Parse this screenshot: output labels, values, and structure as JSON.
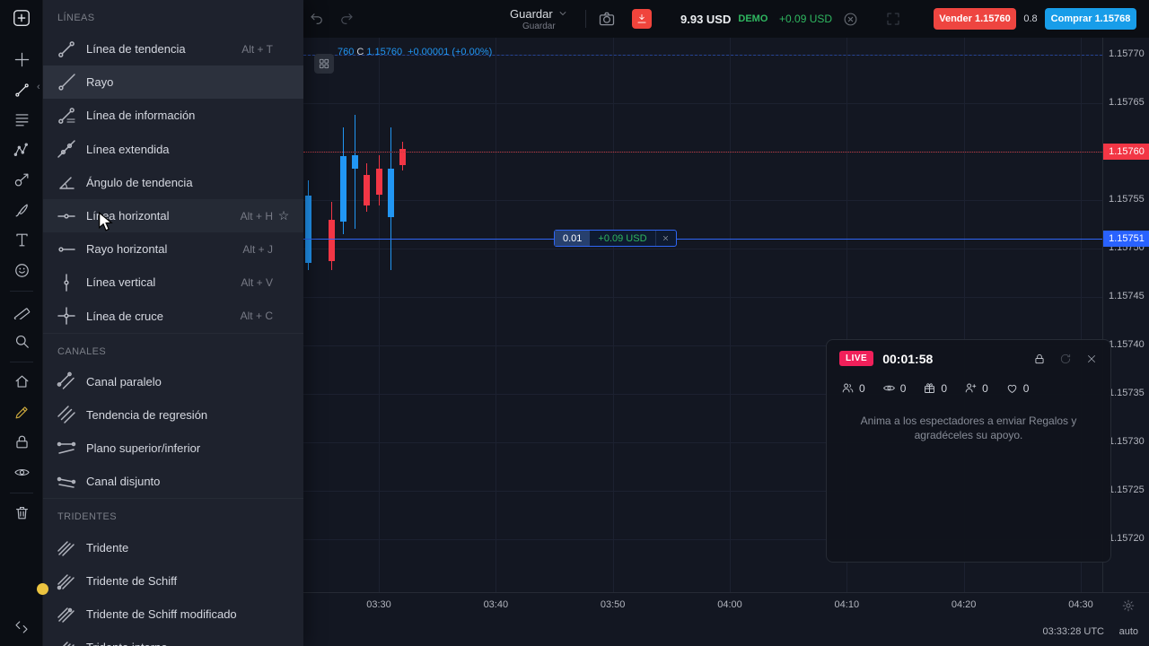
{
  "colors": {
    "background": "#131722",
    "panel": "#1e222d",
    "topbar": "#0b0e14",
    "up_candle": "#2196f3",
    "down_candle": "#f23645",
    "sell_button": "#ee4540",
    "buy_button": "#189de9",
    "green": "#2fb760",
    "live_badge": "#f0205a",
    "position_line": "#2962ff",
    "grid": "#1c2130",
    "axis_text": "#b2b5be",
    "muted_text": "#787b86"
  },
  "topbar": {
    "save_label": "Guardar",
    "save_sublabel": "Guardar",
    "balance": "9.93 USD",
    "account_type": "DEMO",
    "profit": "+0.09 USD",
    "sell_label": "Vender",
    "sell_price": "1.15760",
    "payout": "0.8",
    "buy_label": "Comprar",
    "buy_price": "1.15768"
  },
  "sidebar": {
    "tools": [
      {
        "name": "crosshair",
        "icon": "crosshair"
      },
      {
        "name": "trend-line",
        "icon": "trend",
        "active": true
      },
      {
        "name": "fib-retracement",
        "icon": "fib"
      },
      {
        "name": "xabcd-pattern",
        "icon": "pattern"
      },
      {
        "name": "forecast",
        "icon": "forecast"
      },
      {
        "name": "brush",
        "icon": "brush"
      },
      {
        "name": "text",
        "icon": "text"
      },
      {
        "name": "emoji",
        "icon": "emoji"
      },
      {
        "divider": true
      },
      {
        "name": "measure",
        "icon": "ruler"
      },
      {
        "name": "zoom",
        "icon": "zoom"
      },
      {
        "divider": true
      },
      {
        "name": "home",
        "icon": "home"
      },
      {
        "name": "drawing-lock",
        "icon": "pencil-lock",
        "accent": "#c9a63d"
      },
      {
        "name": "lock-all",
        "icon": "lock"
      },
      {
        "name": "hide-all",
        "icon": "eye"
      },
      {
        "divider": true
      },
      {
        "name": "remove-drawings",
        "icon": "trash"
      }
    ]
  },
  "menu": {
    "sections": [
      {
        "header": "LÍNEAS",
        "items": [
          {
            "label": "Línea de tendencia",
            "shortcut": "Alt + T",
            "icon": "trend-line"
          },
          {
            "label": "Rayo",
            "shortcut": "",
            "icon": "ray",
            "state": "selected"
          },
          {
            "label": "Línea de información",
            "shortcut": "",
            "icon": "info-line"
          },
          {
            "label": "Línea extendida",
            "shortcut": "",
            "icon": "extended-line"
          },
          {
            "label": "Ángulo de tendencia",
            "shortcut": "",
            "icon": "trend-angle"
          },
          {
            "label": "Línea horizontal",
            "shortcut": "Alt + H",
            "icon": "horizontal-line",
            "state": "hover",
            "starred": true
          },
          {
            "label": "Rayo horizontal",
            "shortcut": "Alt + J",
            "icon": "horizontal-ray"
          },
          {
            "label": "Línea vertical",
            "shortcut": "Alt + V",
            "icon": "vertical-line"
          },
          {
            "label": "Línea de cruce",
            "shortcut": "Alt + C",
            "icon": "cross-line"
          }
        ]
      },
      {
        "header": "CANALES",
        "items": [
          {
            "label": "Canal paralelo",
            "shortcut": "",
            "icon": "parallel-channel"
          },
          {
            "label": "Tendencia de regresión",
            "shortcut": "",
            "icon": "regression-trend"
          },
          {
            "label": "Plano superior/inferior",
            "shortcut": "",
            "icon": "flat-top-bottom"
          },
          {
            "label": "Canal disjunto",
            "shortcut": "",
            "icon": "disjoint-channel"
          }
        ]
      },
      {
        "header": "TRIDENTES",
        "items": [
          {
            "label": "Tridente",
            "shortcut": "",
            "icon": "pitchfork"
          },
          {
            "label": "Tridente de Schiff",
            "shortcut": "",
            "icon": "schiff-pitchfork"
          },
          {
            "label": "Tridente de Schiff modificado",
            "shortcut": "",
            "icon": "modified-schiff-pitchfork"
          },
          {
            "label": "Tridente interno",
            "shortcut": "",
            "icon": "inside-pitchfork"
          }
        ]
      }
    ]
  },
  "chart_data": {
    "type": "candlestick",
    "ohlc": {
      "prefix": "760",
      "c_label": "C",
      "close": "1.15760",
      "change": "+0.00001 (+0.00%)"
    },
    "candles": [
      {
        "t": "03:24",
        "o": 1.157485,
        "h": 1.15757,
        "l": 1.157478,
        "c": 1.157555
      },
      {
        "t": "03:26",
        "o": 1.15753,
        "h": 1.157548,
        "l": 1.157478,
        "c": 1.157487
      },
      {
        "t": "03:27",
        "o": 1.157528,
        "h": 1.157625,
        "l": 1.157515,
        "c": 1.157595
      },
      {
        "t": "03:28",
        "o": 1.157582,
        "h": 1.157638,
        "l": 1.15752,
        "c": 1.157596
      },
      {
        "t": "03:29",
        "o": 1.157576,
        "h": 1.157588,
        "l": 1.157538,
        "c": 1.157544
      },
      {
        "t": "03:30",
        "o": 1.157582,
        "h": 1.157596,
        "l": 1.157544,
        "c": 1.157556
      },
      {
        "t": "03:31",
        "o": 1.157532,
        "h": 1.157625,
        "l": 1.157478,
        "c": 1.157582
      },
      {
        "t": "03:32",
        "o": 1.157603,
        "h": 1.15761,
        "l": 1.157581,
        "c": 1.157586
      }
    ],
    "y_axis_ticks": [
      "1.15770",
      "1.15765",
      "1.15760",
      "1.15755",
      "1.15750",
      "1.15745",
      "1.15740",
      "1.15735",
      "1.15730",
      "1.15725",
      "1.15720"
    ],
    "x_axis_ticks": [
      "03:30",
      "03:40",
      "03:50",
      "04:00",
      "04:10",
      "04:20",
      "04:30"
    ],
    "ylim": [
      1.15715,
      1.15772
    ],
    "current_price": 1.1576,
    "position_line_price": 1.15751,
    "up_color": "#2196f3",
    "down_color": "#f23645",
    "grid": true
  },
  "overlays": {
    "current_price": "1.15760",
    "position_price": "1.15751",
    "upper_dashed_price": "1.15770",
    "trade": {
      "amount": "0.01",
      "profit": "+0.09 USD"
    }
  },
  "live_panel": {
    "badge": "LIVE",
    "timer": "00:01:58",
    "stats": [
      {
        "icon": "users",
        "count": "0"
      },
      {
        "icon": "eye",
        "count": "0"
      },
      {
        "icon": "gift",
        "count": "0"
      },
      {
        "icon": "share-user",
        "count": "0"
      },
      {
        "icon": "heart",
        "count": "0"
      }
    ],
    "message": "Anima a los espectadores a enviar Regalos y agradéceles su apoyo."
  },
  "statusbar": {
    "clock": "03:33:28 UTC",
    "mode": "auto"
  }
}
